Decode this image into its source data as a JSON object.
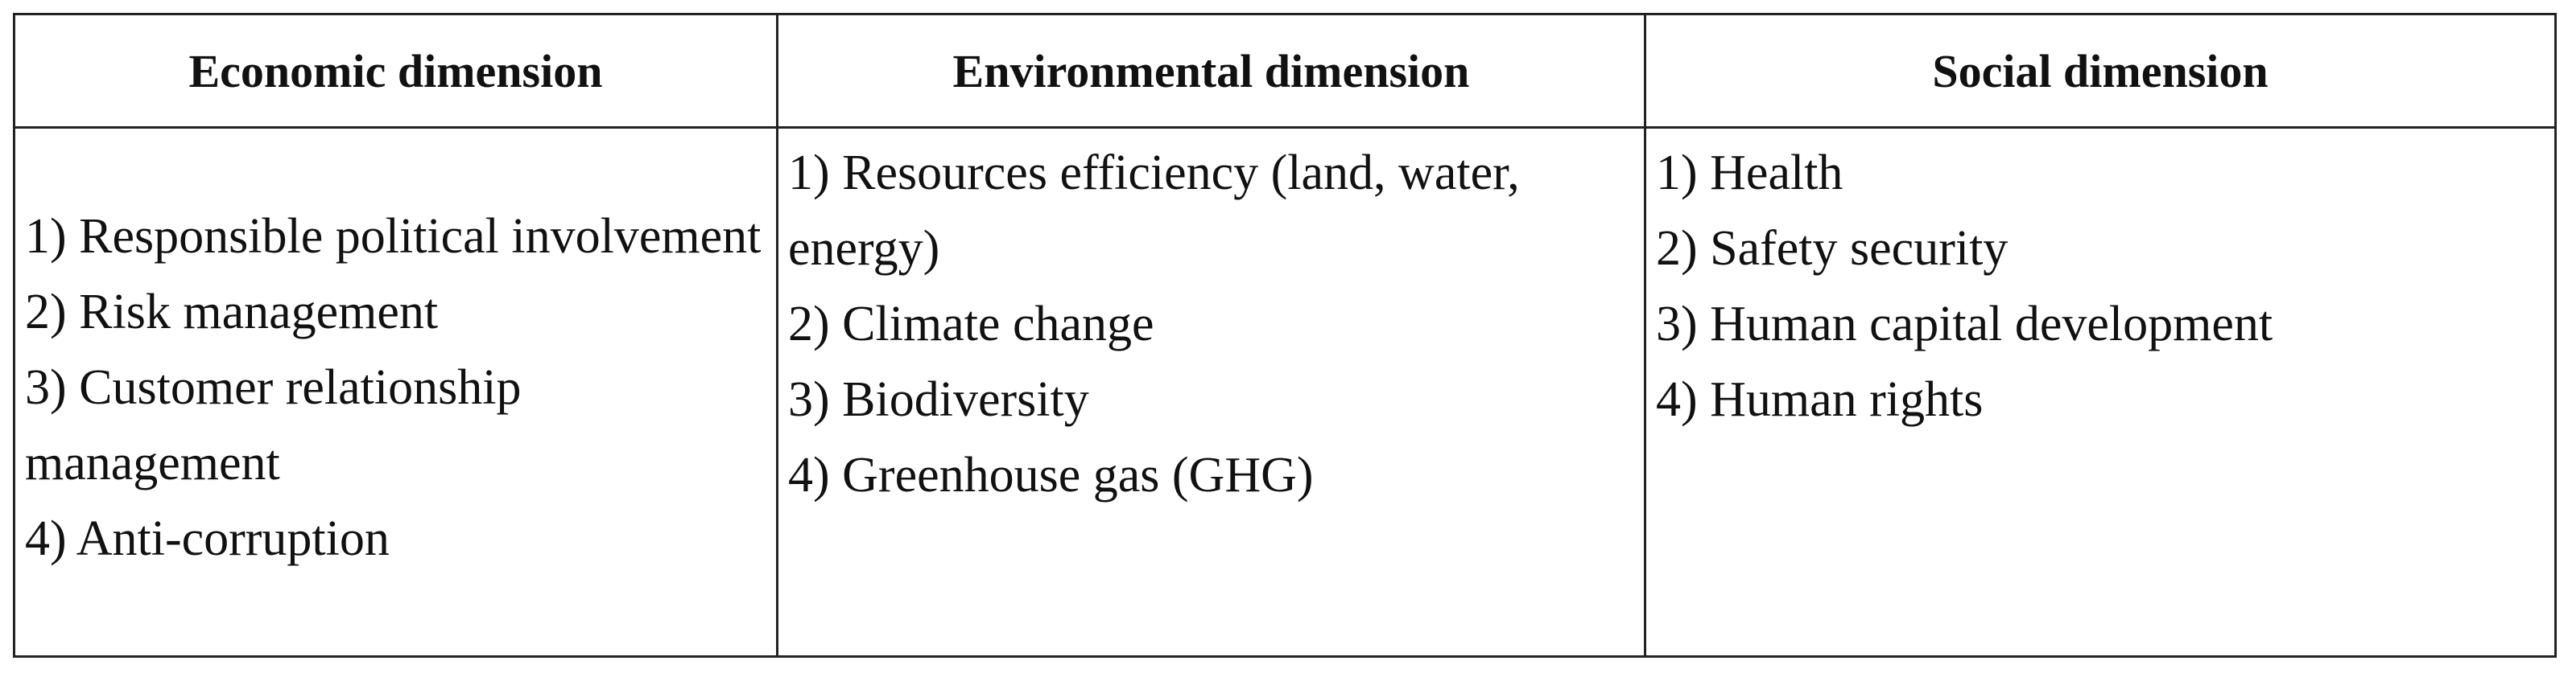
{
  "table": {
    "header": [
      "Economic dimension",
      "Environmental dimension",
      "Social dimension"
    ],
    "cells": [
      [
        "1) Responsible political involvement",
        "2) Risk management",
        "3) Customer relationship management",
        "4) Anti-corruption"
      ],
      [
        "1) Resources efficiency (land, water, energy)",
        "2) Climate change",
        "3) Biodiversity",
        "4) Greenhouse gas (GHG)"
      ],
      [
        "1) Health",
        "2) Safety security",
        "3) Human capital development",
        "4) Human rights"
      ]
    ]
  }
}
